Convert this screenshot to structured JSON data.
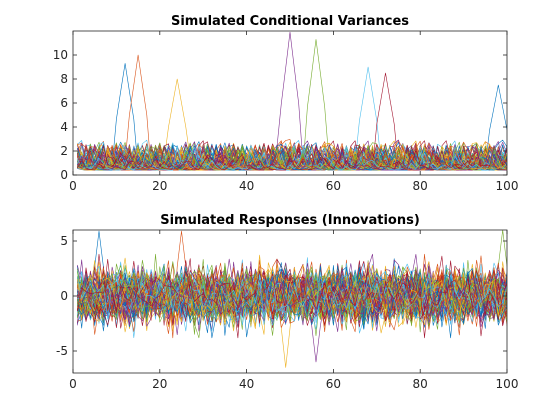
{
  "chart_data": [
    {
      "type": "line",
      "title": "Simulated Conditional Variances",
      "xlabel": "",
      "ylabel": "",
      "xlim": [
        0,
        100
      ],
      "ylim": [
        0,
        12
      ],
      "xticks": [
        0,
        20,
        40,
        60,
        80,
        100
      ],
      "yticks": [
        0,
        2,
        4,
        6,
        8,
        10
      ],
      "grid": false,
      "n_series": 1000,
      "n_points": 100,
      "baseline_level": 1.0,
      "typical_range": [
        0.3,
        4.5
      ],
      "peaks": [
        {
          "x": 12,
          "y": 9.3
        },
        {
          "x": 15,
          "y": 10.0
        },
        {
          "x": 24,
          "y": 8.0
        },
        {
          "x": 50,
          "y": 11.9
        },
        {
          "x": 56,
          "y": 11.3
        },
        {
          "x": 68,
          "y": 9.0
        },
        {
          "x": 72,
          "y": 8.5
        },
        {
          "x": 98,
          "y": 7.5
        }
      ]
    },
    {
      "type": "line",
      "title": "Simulated Responses (Innovations)",
      "xlabel": "",
      "ylabel": "",
      "xlim": [
        0,
        100
      ],
      "ylim": [
        -7,
        6
      ],
      "xticks": [
        0,
        20,
        40,
        60,
        80,
        100
      ],
      "yticks": [
        -5,
        0,
        5
      ],
      "grid": false,
      "n_series": 1000,
      "n_points": 100,
      "typical_range": [
        -3.5,
        3.5
      ],
      "extremes": [
        {
          "x": 6,
          "y": 5.9
        },
        {
          "x": 25,
          "y": 5.9
        },
        {
          "x": 49,
          "y": -6.5
        },
        {
          "x": 56,
          "y": -6.0
        },
        {
          "x": 99,
          "y": 6.0
        }
      ]
    }
  ],
  "colors": [
    "#0072BD",
    "#D95319",
    "#EDB120",
    "#7E2F8E",
    "#77AC30",
    "#4DBEEE",
    "#A2142F"
  ]
}
